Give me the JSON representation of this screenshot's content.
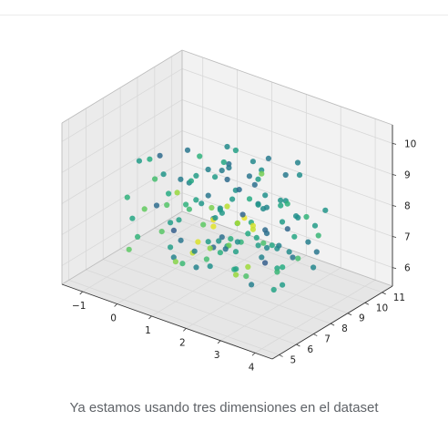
{
  "caption": "Ya estamos usando tres dimensiones en el dataset",
  "chart_data": {
    "type": "scatter3d",
    "title": "",
    "x_ticks": [
      "−1",
      "0",
      "1",
      "2",
      "3",
      "4"
    ],
    "y_ticks": [
      "5",
      "6",
      "7",
      "8",
      "9",
      "10",
      "11"
    ],
    "z_ticks": [
      "6",
      "7",
      "8",
      "9",
      "10"
    ],
    "xlim": [
      -1.6,
      4.5
    ],
    "ylim": [
      4.6,
      11.6
    ],
    "zlim": [
      5.4,
      10.6
    ],
    "colormap": "viridis",
    "pane_color": "#f2f2f2",
    "grid_color": "#d8d8d8",
    "points": [
      {
        "x": 1.3,
        "y": 8.0,
        "z": 7.8,
        "c": 0.55
      },
      {
        "x": 0.2,
        "y": 6.4,
        "z": 8.9,
        "c": 0.7
      },
      {
        "x": 2.9,
        "y": 9.1,
        "z": 7.2,
        "c": 0.6
      },
      {
        "x": 1.0,
        "y": 7.2,
        "z": 6.1,
        "c": 0.45
      },
      {
        "x": 3.1,
        "y": 7.0,
        "z": 8.2,
        "c": 0.35
      },
      {
        "x": -0.2,
        "y": 8.5,
        "z": 7.6,
        "c": 0.85
      },
      {
        "x": 2.2,
        "y": 6.5,
        "z": 7.4,
        "c": 0.4
      },
      {
        "x": 1.6,
        "y": 9.8,
        "z": 8.6,
        "c": 0.5
      },
      {
        "x": 0.8,
        "y": 7.8,
        "z": 9.4,
        "c": 0.65
      },
      {
        "x": 2.5,
        "y": 8.2,
        "z": 6.5,
        "c": 0.3
      },
      {
        "x": 3.6,
        "y": 8.9,
        "z": 7.9,
        "c": 0.55
      },
      {
        "x": -0.8,
        "y": 7.1,
        "z": 7.0,
        "c": 0.6
      },
      {
        "x": 1.9,
        "y": 5.8,
        "z": 8.3,
        "c": 0.75
      },
      {
        "x": 0.5,
        "y": 9.2,
        "z": 6.8,
        "c": 0.45
      },
      {
        "x": 2.8,
        "y": 7.6,
        "z": 9.0,
        "c": 0.5
      },
      {
        "x": 1.2,
        "y": 6.9,
        "z": 7.1,
        "c": 0.95
      },
      {
        "x": 3.3,
        "y": 9.6,
        "z": 6.7,
        "c": 0.4
      },
      {
        "x": -0.5,
        "y": 6.2,
        "z": 8.1,
        "c": 0.65
      },
      {
        "x": 2.0,
        "y": 8.8,
        "z": 8.8,
        "c": 0.55
      },
      {
        "x": 0.9,
        "y": 8.4,
        "z": 6.3,
        "c": 0.35
      },
      {
        "x": 1.7,
        "y": 7.4,
        "z": 9.7,
        "c": 0.6
      },
      {
        "x": 3.9,
        "y": 7.3,
        "z": 7.5,
        "c": 0.7
      },
      {
        "x": 0.1,
        "y": 7.7,
        "z": 5.9,
        "c": 0.45
      },
      {
        "x": 2.4,
        "y": 10.2,
        "z": 7.3,
        "c": 0.5
      },
      {
        "x": 1.4,
        "y": 5.5,
        "z": 7.7,
        "c": 0.4
      },
      {
        "x": 2.7,
        "y": 6.1,
        "z": 6.9,
        "c": 0.85
      },
      {
        "x": -1.1,
        "y": 8.1,
        "z": 8.4,
        "c": 0.55
      },
      {
        "x": 0.6,
        "y": 6.7,
        "z": 7.3,
        "c": 0.3
      },
      {
        "x": 3.0,
        "y": 8.5,
        "z": 8.5,
        "c": 0.65
      },
      {
        "x": 1.8,
        "y": 9.4,
        "z": 6.0,
        "c": 0.45
      },
      {
        "x": 2.3,
        "y": 7.9,
        "z": 7.6,
        "c": 0.92
      },
      {
        "x": 0.3,
        "y": 9.7,
        "z": 7.9,
        "c": 0.55
      },
      {
        "x": 1.1,
        "y": 8.9,
        "z": 8.9,
        "c": 0.38
      },
      {
        "x": 3.5,
        "y": 6.6,
        "z": 8.0,
        "c": 0.6
      },
      {
        "x": -0.3,
        "y": 5.9,
        "z": 6.6,
        "c": 0.75
      },
      {
        "x": 2.6,
        "y": 9.9,
        "z": 9.2,
        "c": 0.45
      },
      {
        "x": 1.5,
        "y": 7.0,
        "z": 6.4,
        "c": 0.5
      },
      {
        "x": 0.7,
        "y": 8.7,
        "z": 7.4,
        "c": 0.8
      },
      {
        "x": 2.1,
        "y": 6.8,
        "z": 9.5,
        "c": 0.35
      },
      {
        "x": 3.2,
        "y": 7.8,
        "z": 6.2,
        "c": 0.55
      },
      {
        "x": -0.7,
        "y": 9.0,
        "z": 7.2,
        "c": 0.62
      },
      {
        "x": 1.3,
        "y": 10.5,
        "z": 7.0,
        "c": 0.48
      },
      {
        "x": 2.9,
        "y": 5.7,
        "z": 7.3,
        "c": 0.58
      },
      {
        "x": 0.4,
        "y": 7.5,
        "z": 8.6,
        "c": 0.42
      },
      {
        "x": 1.9,
        "y": 8.3,
        "z": 5.8,
        "c": 0.72
      },
      {
        "x": 3.7,
        "y": 9.3,
        "z": 8.3,
        "c": 0.52
      },
      {
        "x": 0.0,
        "y": 6.9,
        "z": 7.8,
        "c": 0.36
      },
      {
        "x": 2.2,
        "y": 7.2,
        "z": 8.0,
        "c": 0.88
      },
      {
        "x": 1.0,
        "y": 9.5,
        "z": 9.1,
        "c": 0.57
      },
      {
        "x": 2.7,
        "y": 8.6,
        "z": 7.0,
        "c": 0.44
      },
      {
        "x": -0.9,
        "y": 7.6,
        "z": 6.2,
        "c": 0.66
      },
      {
        "x": 1.6,
        "y": 6.3,
        "z": 8.7,
        "c": 0.53
      },
      {
        "x": 3.4,
        "y": 8.0,
        "z": 7.1,
        "c": 0.39
      },
      {
        "x": 0.8,
        "y": 10.0,
        "z": 6.5,
        "c": 0.61
      },
      {
        "x": 2.4,
        "y": 7.7,
        "z": 9.9,
        "c": 0.47
      },
      {
        "x": 1.2,
        "y": 5.6,
        "z": 6.9,
        "c": 0.82
      },
      {
        "x": 0.2,
        "y": 8.8,
        "z": 8.2,
        "c": 0.56
      },
      {
        "x": 3.0,
        "y": 6.4,
        "z": 6.6,
        "c": 0.43
      },
      {
        "x": 1.7,
        "y": 8.6,
        "z": 7.5,
        "c": 0.97
      },
      {
        "x": 2.5,
        "y": 9.4,
        "z": 8.1,
        "c": 0.51
      },
      {
        "x": -0.4,
        "y": 7.3,
        "z": 9.0,
        "c": 0.63
      },
      {
        "x": 1.4,
        "y": 7.9,
        "z": 7.0,
        "c": 0.37
      },
      {
        "x": 2.8,
        "y": 7.1,
        "z": 7.8,
        "c": 0.59
      },
      {
        "x": 0.6,
        "y": 6.0,
        "z": 7.5,
        "c": 0.74
      },
      {
        "x": 3.8,
        "y": 8.4,
        "z": 6.8,
        "c": 0.46
      },
      {
        "x": 1.1,
        "y": 9.1,
        "z": 7.7,
        "c": 0.54
      },
      {
        "x": 2.0,
        "y": 10.4,
        "z": 8.4,
        "c": 0.41
      },
      {
        "x": 0.9,
        "y": 7.0,
        "z": 8.0,
        "c": 0.69
      },
      {
        "x": 2.6,
        "y": 6.7,
        "z": 8.6,
        "c": 0.33
      },
      {
        "x": 1.5,
        "y": 8.1,
        "z": 6.7,
        "c": 0.78
      },
      {
        "x": -0.1,
        "y": 9.4,
        "z": 7.1,
        "c": 0.58
      },
      {
        "x": 3.1,
        "y": 9.0,
        "z": 9.3,
        "c": 0.49
      },
      {
        "x": 1.8,
        "y": 7.6,
        "z": 7.2,
        "c": 0.64
      },
      {
        "x": 0.5,
        "y": 8.0,
        "z": 6.1,
        "c": 0.91
      },
      {
        "x": 2.3,
        "y": 5.9,
        "z": 7.9,
        "c": 0.52
      },
      {
        "x": 1.3,
        "y": 7.3,
        "z": 8.5,
        "c": 0.4
      },
      {
        "x": 2.9,
        "y": 8.1,
        "z": 6.4,
        "c": 0.67
      },
      {
        "x": 0.3,
        "y": 7.1,
        "z": 7.3,
        "c": 0.55
      },
      {
        "x": 1.9,
        "y": 9.0,
        "z": 7.9,
        "c": 0.45
      },
      {
        "x": 3.3,
        "y": 7.5,
        "z": 8.9,
        "c": 0.6
      },
      {
        "x": 1.0,
        "y": 8.2,
        "z": 7.3,
        "c": 0.99
      },
      {
        "x": 2.1,
        "y": 9.7,
        "z": 6.3,
        "c": 0.5
      },
      {
        "x": -0.6,
        "y": 8.3,
        "z": 8.7,
        "c": 0.35
      },
      {
        "x": 1.6,
        "y": 6.6,
        "z": 6.8,
        "c": 0.7
      },
      {
        "x": 2.7,
        "y": 8.8,
        "z": 7.7,
        "c": 0.55
      },
      {
        "x": 0.7,
        "y": 9.3,
        "z": 8.4,
        "c": 0.42
      },
      {
        "x": 3.6,
        "y": 7.0,
        "z": 7.2,
        "c": 0.63
      },
      {
        "x": 1.2,
        "y": 8.6,
        "z": 9.6,
        "c": 0.48
      },
      {
        "x": 2.4,
        "y": 7.4,
        "z": 6.6,
        "c": 0.86
      },
      {
        "x": 0.0,
        "y": 8.2,
        "z": 6.9,
        "c": 0.57
      },
      {
        "x": 1.7,
        "y": 5.7,
        "z": 7.4,
        "c": 0.44
      },
      {
        "x": 2.8,
        "y": 10.0,
        "z": 7.5,
        "c": 0.66
      },
      {
        "x": 0.4,
        "y": 6.5,
        "z": 9.1,
        "c": 0.52
      },
      {
        "x": 2.2,
        "y": 8.9,
        "z": 7.1,
        "c": 0.38
      },
      {
        "x": 1.4,
        "y": 9.6,
        "z": 6.9,
        "c": 0.61
      },
      {
        "x": 3.2,
        "y": 6.9,
        "z": 7.7,
        "c": 0.47
      },
      {
        "x": -0.2,
        "y": 7.9,
        "z": 7.4,
        "c": 0.73
      },
      {
        "x": 1.8,
        "y": 7.1,
        "z": 8.2,
        "c": 0.54
      },
      {
        "x": 2.5,
        "y": 8.4,
        "z": 9.8,
        "c": 0.41
      },
      {
        "x": 1.1,
        "y": 6.2,
        "z": 6.6,
        "c": 0.68
      },
      {
        "x": 2.0,
        "y": 8.5,
        "z": 7.4,
        "c": 0.94
      },
      {
        "x": 0.8,
        "y": 9.9,
        "z": 7.6,
        "c": 0.51
      },
      {
        "x": 3.0,
        "y": 7.7,
        "z": 6.0,
        "c": 0.58
      },
      {
        "x": 1.5,
        "y": 8.7,
        "z": 8.3,
        "c": 0.36
      },
      {
        "x": 2.6,
        "y": 6.2,
        "z": 7.0,
        "c": 0.62
      },
      {
        "x": 0.1,
        "y": 8.6,
        "z": 8.0,
        "c": 0.45
      },
      {
        "x": 1.9,
        "y": 9.2,
        "z": 8.8,
        "c": 0.79
      },
      {
        "x": 2.3,
        "y": 7.0,
        "z": 7.5,
        "c": 0.5
      },
      {
        "x": 1.3,
        "y": 8.4,
        "z": 6.5,
        "c": 0.57
      },
      {
        "x": 3.5,
        "y": 8.7,
        "z": 7.4,
        "c": 0.43
      },
      {
        "x": 0.6,
        "y": 7.4,
        "z": 7.9,
        "c": 0.65
      },
      {
        "x": 2.1,
        "y": 6.1,
        "z": 8.5,
        "c": 0.52
      },
      {
        "x": 1.0,
        "y": 10.3,
        "z": 8.0,
        "c": 0.39
      },
      {
        "x": 2.9,
        "y": 7.3,
        "z": 7.6,
        "c": 0.71
      },
      {
        "x": 1.6,
        "y": 7.8,
        "z": 8.1,
        "c": 0.9
      },
      {
        "x": 0.2,
        "y": 7.3,
        "z": 6.4,
        "c": 0.56
      },
      {
        "x": 2.7,
        "y": 9.2,
        "z": 6.6,
        "c": 0.48
      },
      {
        "x": 1.2,
        "y": 6.5,
        "z": 9.2,
        "c": 0.6
      },
      {
        "x": 3.1,
        "y": 8.3,
        "z": 7.8,
        "c": 0.34
      },
      {
        "x": 0.9,
        "y": 8.8,
        "z": 6.0,
        "c": 0.64
      },
      {
        "x": 2.4,
        "y": 8.0,
        "z": 8.4,
        "c": 0.53
      },
      {
        "x": 1.7,
        "y": 9.9,
        "z": 7.4,
        "c": 0.46
      },
      {
        "x": -0.3,
        "y": 6.8,
        "z": 7.6,
        "c": 0.76
      },
      {
        "x": 2.0,
        "y": 7.5,
        "z": 6.9,
        "c": 0.57
      },
      {
        "x": 1.4,
        "y": 8.3,
        "z": 9.1,
        "c": 0.42
      },
      {
        "x": 2.8,
        "y": 6.6,
        "z": 8.1,
        "c": 0.61
      },
      {
        "x": 0.5,
        "y": 9.6,
        "z": 7.0,
        "c": 0.49
      },
      {
        "x": 3.4,
        "y": 9.5,
        "z": 7.3,
        "c": 0.67
      },
      {
        "x": 1.1,
        "y": 7.7,
        "z": 6.8,
        "c": 0.55
      },
      {
        "x": 2.2,
        "y": 8.2,
        "z": 8.9,
        "c": 0.37
      },
      {
        "x": 1.8,
        "y": 6.4,
        "z": 7.3,
        "c": 0.83
      },
      {
        "x": 2.6,
        "y": 8.7,
        "z": 6.2,
        "c": 0.59
      },
      {
        "x": 0.7,
        "y": 8.5,
        "z": 8.7,
        "c": 0.44
      },
      {
        "x": 1.5,
        "y": 9.3,
        "z": 7.8,
        "c": 0.62
      },
      {
        "x": 3.7,
        "y": 7.7,
        "z": 8.6,
        "c": 0.5
      },
      {
        "x": 1.3,
        "y": 7.6,
        "z": 7.4,
        "c": 0.96
      },
      {
        "x": 2.5,
        "y": 7.8,
        "z": 7.2,
        "c": 0.56
      },
      {
        "x": 0.3,
        "y": 8.1,
        "z": 9.3,
        "c": 0.4
      },
      {
        "x": 1.9,
        "y": 8.0,
        "z": 7.0,
        "c": 0.66
      },
      {
        "x": 2.3,
        "y": 9.5,
        "z": 8.0,
        "c": 0.52
      }
    ]
  }
}
